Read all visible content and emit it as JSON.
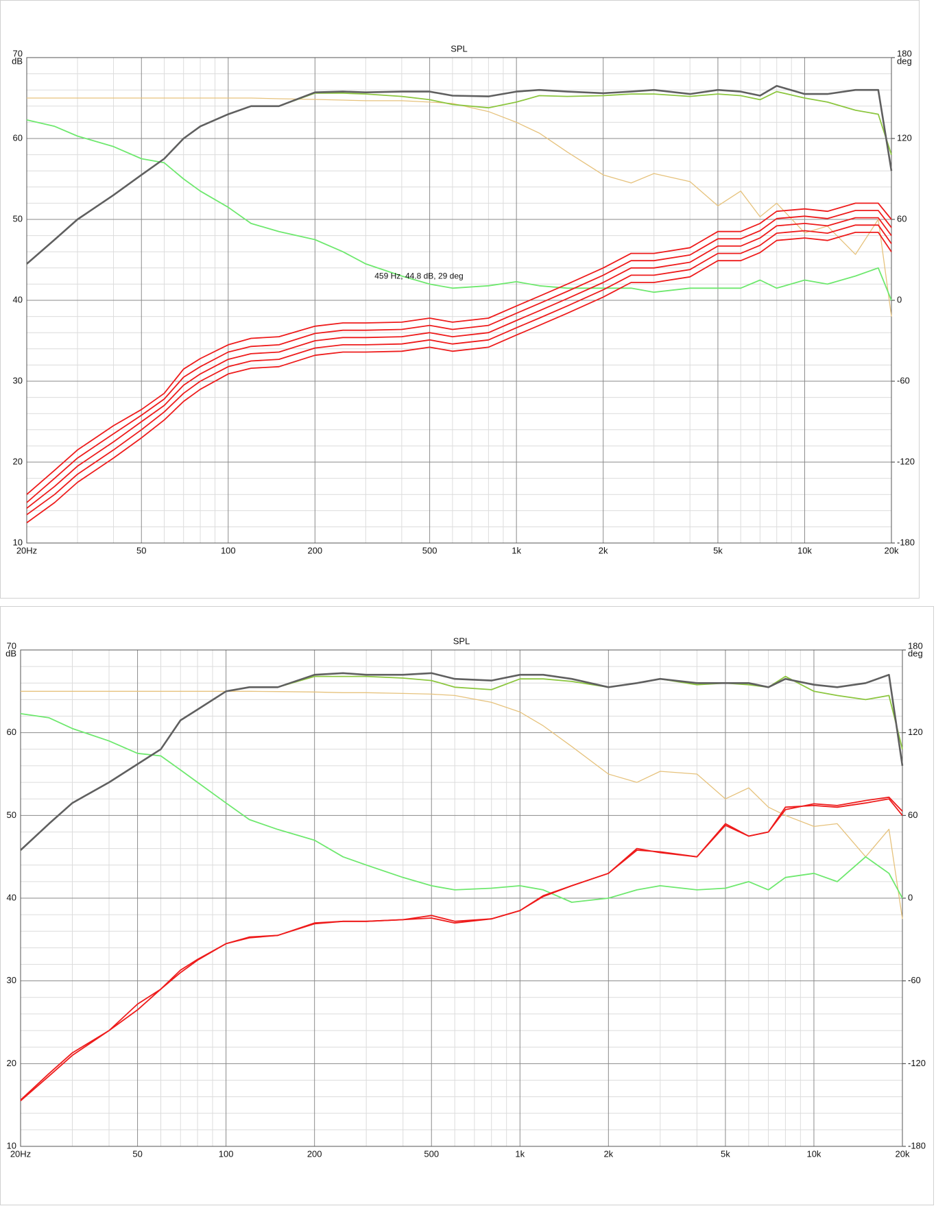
{
  "chart_data": [
    {
      "type": "line",
      "title": "SPL",
      "y_unit": "dB",
      "y2_unit": "deg",
      "log_x": true,
      "grid": true,
      "x": [
        20,
        25,
        30,
        40,
        50,
        60,
        70,
        80,
        100,
        120,
        150,
        200,
        250,
        300,
        400,
        500,
        600,
        800,
        1000,
        1200,
        1500,
        2000,
        2500,
        3000,
        4000,
        5000,
        6000,
        7000,
        8000,
        10000,
        12000,
        15000,
        18000,
        20000
      ],
      "xlim": [
        20,
        20000
      ],
      "xticks": [
        {
          "value": 20,
          "label": "20Hz"
        },
        50,
        100,
        200,
        500,
        {
          "value": 1000,
          "label": "1k"
        },
        {
          "value": 2000,
          "label": "2k"
        },
        {
          "value": 5000,
          "label": "5k"
        },
        {
          "value": 10000,
          "label": "10k"
        },
        {
          "value": 20000,
          "label": "20k"
        }
      ],
      "xminorticks": [
        30,
        40,
        60,
        70,
        80,
        90,
        300,
        400,
        600,
        700,
        800,
        900,
        3000,
        4000,
        6000,
        7000,
        8000,
        9000
      ],
      "ylim": [
        10,
        70
      ],
      "yticks": [
        10,
        20,
        30,
        40,
        50,
        60,
        70
      ],
      "yminorticks": [
        12,
        14,
        16,
        18,
        22,
        24,
        26,
        28,
        32,
        34,
        36,
        38,
        42,
        44,
        46,
        48,
        52,
        54,
        56,
        58,
        62,
        64,
        66,
        68
      ],
      "y2lim": [
        -180,
        180
      ],
      "y2ticks": [
        -180,
        -120,
        -60,
        0,
        60,
        120,
        180
      ],
      "annotation": {
        "text": "459 Hz, 44.8 dB, 29 deg",
        "x": 459,
        "y": 44.8
      },
      "series": [
        {
          "color": "#e6c27c",
          "axis": "y2",
          "values": [
            150,
            150,
            150,
            150,
            150,
            150,
            150,
            150,
            150,
            150,
            149.5,
            149,
            148.5,
            148,
            148,
            147,
            146,
            140,
            132,
            124,
            110,
            93,
            87,
            94,
            88,
            70,
            81,
            62,
            72,
            50,
            55,
            34,
            60,
            -12
          ]
        },
        {
          "color": "#6ee86e",
          "values": [
            62.3,
            61.5,
            60.3,
            59,
            57.5,
            57,
            55,
            53.5,
            51.5,
            49.5,
            48.5,
            47.5,
            46,
            44.5,
            43,
            42,
            41.5,
            41.8,
            42.3,
            41.8,
            41.5,
            41.5,
            41.5,
            41,
            41.5,
            41.5,
            41.5,
            42.5,
            41.5,
            42.5,
            42,
            43,
            44,
            40
          ]
        },
        {
          "color": "#ee1b1b",
          "values": [
            16,
            19,
            21.5,
            24.5,
            26.5,
            28.5,
            31.5,
            32.8,
            34.5,
            35.3,
            35.5,
            36.8,
            37.2,
            37.2,
            37.3,
            37.8,
            37.3,
            37.8,
            39.3,
            40.5,
            42,
            44,
            45.8,
            45.8,
            46.5,
            48.5,
            48.5,
            49.5,
            51,
            51.3,
            51,
            52,
            52,
            50
          ]
        },
        {
          "color": "#ee1b1b",
          "values": [
            15,
            18,
            20.5,
            23.5,
            25.8,
            27.8,
            30.5,
            31.8,
            33.6,
            34.3,
            34.5,
            35.9,
            36.3,
            36.3,
            36.4,
            36.9,
            36.4,
            36.9,
            38.4,
            39.6,
            41.1,
            43.1,
            44.9,
            44.9,
            45.6,
            47.6,
            47.6,
            48.6,
            50.1,
            50.4,
            50.1,
            51.1,
            51.1,
            49
          ]
        },
        {
          "color": "#ee1b1b",
          "values": [
            14.3,
            17,
            19.5,
            22.5,
            25,
            27,
            29.5,
            30.9,
            32.7,
            33.4,
            33.6,
            35,
            35.4,
            35.4,
            35.5,
            36,
            35.5,
            36,
            37.5,
            38.7,
            40.2,
            42.2,
            44,
            44,
            44.7,
            46.7,
            46.7,
            47.7,
            49.2,
            49.5,
            49.2,
            50.2,
            50.2,
            48
          ]
        },
        {
          "color": "#ee1b1b",
          "values": [
            13.5,
            16,
            18.5,
            21.5,
            24,
            26.2,
            28.5,
            30,
            31.8,
            32.5,
            32.7,
            34.1,
            34.5,
            34.5,
            34.6,
            35.1,
            34.6,
            35.1,
            36.6,
            37.8,
            39.3,
            41.3,
            43.1,
            43.1,
            43.8,
            45.8,
            45.8,
            46.8,
            48.3,
            48.6,
            48.3,
            49.3,
            49.3,
            47
          ]
        },
        {
          "color": "#ee1b1b",
          "values": [
            12.5,
            15,
            17.5,
            20.5,
            23,
            25.2,
            27.5,
            29,
            30.9,
            31.6,
            31.8,
            33.2,
            33.6,
            33.6,
            33.7,
            34.2,
            33.7,
            34.2,
            35.7,
            36.9,
            38.4,
            40.4,
            42.2,
            42.2,
            42.9,
            44.9,
            44.9,
            45.9,
            47.4,
            47.7,
            47.4,
            48.4,
            48.4,
            46
          ]
        },
        {
          "color": "#8cc63f",
          "values": [
            44.5,
            47.5,
            50,
            53,
            55.5,
            57.5,
            60,
            61.5,
            63,
            64,
            64,
            65.6,
            65.6,
            65.5,
            65.2,
            64.8,
            64.2,
            63.8,
            64.5,
            65.3,
            65.2,
            65.3,
            65.5,
            65.5,
            65.2,
            65.5,
            65.3,
            64.8,
            65.8,
            65,
            64.5,
            63.5,
            63,
            58
          ]
        },
        {
          "color": "#5f5f5f",
          "values": [
            44.5,
            47.5,
            50,
            53,
            55.5,
            57.5,
            60,
            61.5,
            63,
            64,
            64,
            65.7,
            65.8,
            65.7,
            65.8,
            65.8,
            65.3,
            65.2,
            65.8,
            66,
            65.8,
            65.6,
            65.8,
            66,
            65.5,
            66,
            65.8,
            65.3,
            66.5,
            65.5,
            65.5,
            66,
            66,
            56
          ]
        }
      ]
    },
    {
      "type": "line",
      "title": "SPL",
      "y_unit": "dB",
      "y2_unit": "deg",
      "log_x": true,
      "grid": true,
      "x": [
        20,
        25,
        30,
        40,
        50,
        60,
        70,
        80,
        100,
        120,
        150,
        200,
        250,
        300,
        400,
        500,
        600,
        800,
        1000,
        1200,
        1500,
        2000,
        2500,
        3000,
        4000,
        5000,
        6000,
        7000,
        8000,
        10000,
        12000,
        15000,
        18000,
        20000
      ],
      "xlim": [
        20,
        20000
      ],
      "xticks": [
        {
          "value": 20,
          "label": "20Hz"
        },
        50,
        100,
        200,
        500,
        {
          "value": 1000,
          "label": "1k"
        },
        {
          "value": 2000,
          "label": "2k"
        },
        {
          "value": 5000,
          "label": "5k"
        },
        {
          "value": 10000,
          "label": "10k"
        },
        {
          "value": 20000,
          "label": "20k"
        }
      ],
      "xminorticks": [
        30,
        40,
        60,
        70,
        80,
        90,
        300,
        400,
        600,
        700,
        800,
        900,
        3000,
        4000,
        6000,
        7000,
        8000,
        9000
      ],
      "ylim": [
        10,
        70
      ],
      "yticks": [
        10,
        20,
        30,
        40,
        50,
        60,
        70
      ],
      "yminorticks": [
        12,
        14,
        16,
        18,
        22,
        24,
        26,
        28,
        32,
        34,
        36,
        38,
        42,
        44,
        46,
        48,
        52,
        54,
        56,
        58,
        62,
        64,
        66,
        68
      ],
      "y2lim": [
        -180,
        180
      ],
      "y2ticks": [
        -180,
        -120,
        -60,
        0,
        60,
        120,
        180
      ],
      "series": [
        {
          "color": "#e6c27c",
          "axis": "y2",
          "values": [
            150,
            150,
            150,
            150,
            150,
            150,
            150,
            150,
            150,
            150,
            149.8,
            149.5,
            149,
            149,
            148.5,
            148,
            147,
            142,
            135,
            125,
            110,
            90,
            84,
            92,
            90,
            72,
            80,
            66,
            60,
            52,
            54,
            30,
            50,
            -15
          ]
        },
        {
          "color": "#6ee86e",
          "values": [
            62.3,
            61.8,
            60.5,
            59,
            57.5,
            57.2,
            55.5,
            54,
            51.5,
            49.5,
            48.3,
            47,
            45,
            44,
            42.5,
            41.5,
            41,
            41.2,
            41.5,
            41,
            39.5,
            40,
            41,
            41.5,
            41,
            41.2,
            42,
            41,
            42.5,
            43,
            42,
            45,
            43,
            40
          ]
        },
        {
          "color": "#ee1b1b",
          "values": [
            15.5,
            18.5,
            21,
            24,
            26.5,
            29,
            31,
            32.5,
            34.5,
            35.3,
            35.5,
            37,
            37.2,
            37.2,
            37.4,
            37.6,
            37,
            37.5,
            38.5,
            40.3,
            41.5,
            43,
            46,
            45.5,
            45,
            49,
            47.5,
            48,
            51,
            51.2,
            51,
            51.5,
            52,
            50
          ]
        },
        {
          "color": "#ee1b1b",
          "values": [
            15.6,
            18.8,
            21.3,
            24,
            27.2,
            29,
            31.3,
            32.6,
            34.5,
            35.2,
            35.5,
            36.9,
            37.2,
            37.2,
            37.4,
            37.9,
            37.2,
            37.5,
            38.5,
            40.2,
            41.5,
            43,
            45.8,
            45.6,
            45,
            48.8,
            47.5,
            48,
            50.7,
            51.4,
            51.2,
            51.8,
            52.2,
            50.5
          ]
        },
        {
          "color": "#8cc63f",
          "values": [
            45.8,
            49,
            51.5,
            54,
            56.2,
            58,
            61.5,
            62.8,
            65,
            65.5,
            65.5,
            66.8,
            66.8,
            66.8,
            66.6,
            66.3,
            65.5,
            65.2,
            66.5,
            66.5,
            66.2,
            65.5,
            66,
            66.5,
            65.8,
            66,
            65.8,
            65.5,
            66.8,
            65,
            64.5,
            64,
            64.5,
            58
          ]
        },
        {
          "color": "#5f5f5f",
          "values": [
            45.8,
            49,
            51.5,
            54,
            56.2,
            58,
            61.5,
            62.8,
            65,
            65.5,
            65.5,
            67,
            67.2,
            67,
            67,
            67.2,
            66.5,
            66.3,
            67,
            67,
            66.5,
            65.5,
            66,
            66.5,
            66,
            66,
            66,
            65.5,
            66.5,
            65.8,
            65.5,
            66,
            67,
            56
          ]
        }
      ]
    }
  ]
}
